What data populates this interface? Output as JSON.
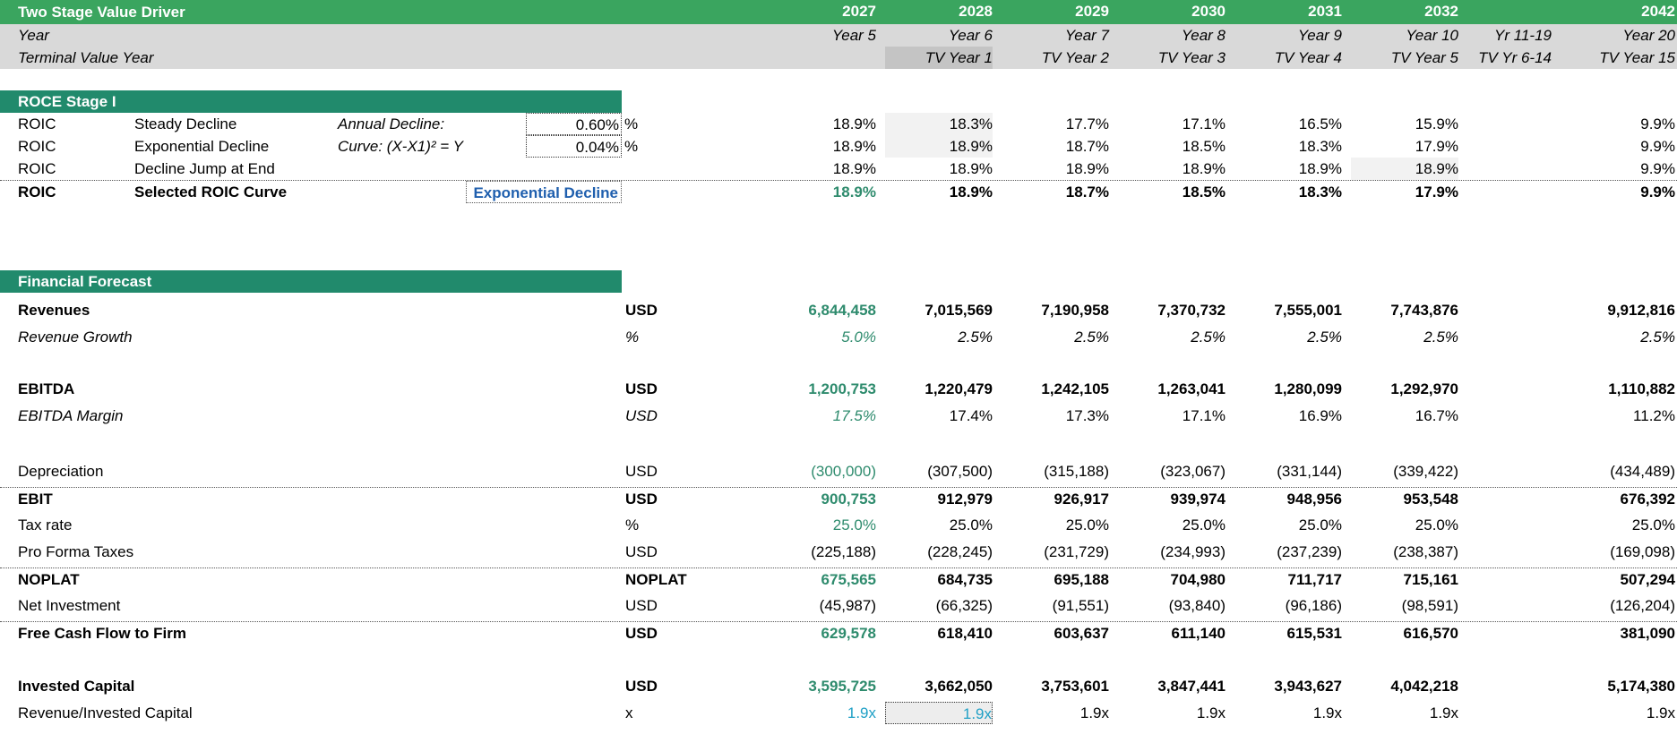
{
  "header": {
    "title": "Two Stage Value Driver",
    "years": [
      "2027",
      "2028",
      "2029",
      "2030",
      "2031",
      "2032",
      "",
      "2042"
    ]
  },
  "year_row": {
    "label": "Year",
    "values": [
      "Year 5",
      "Year 6",
      "Year 7",
      "Year 8",
      "Year 9",
      "Year 10",
      "Yr 11-19",
      "Year 20"
    ]
  },
  "tv_row": {
    "label": "Terminal Value Year",
    "values": [
      "",
      "TV Year 1",
      "TV Year 2",
      "TV Year 3",
      "TV Year 4",
      "TV Year 5",
      "TV Yr 6-14",
      "TV Year 15"
    ]
  },
  "roce": {
    "title": "ROCE Stage I",
    "rows": [
      {
        "a": "ROIC",
        "b": "Steady Decline",
        "c": "Annual Decline:",
        "input": "0.60%",
        "unit": "%",
        "values": [
          "18.9%",
          "18.3%",
          "17.7%",
          "17.1%",
          "16.5%",
          "15.9%",
          "",
          "9.9%"
        ]
      },
      {
        "a": "ROIC",
        "b": "Exponential Decline",
        "c": "Curve: (X-X1)² = Y",
        "input": "0.04%",
        "unit": "%",
        "values": [
          "18.9%",
          "18.9%",
          "18.7%",
          "18.5%",
          "18.3%",
          "17.9%",
          "",
          "9.9%"
        ]
      },
      {
        "a": "ROIC",
        "b": "Decline Jump at End",
        "c": "",
        "input": "",
        "unit": "",
        "values": [
          "18.9%",
          "18.9%",
          "18.9%",
          "18.9%",
          "18.9%",
          "18.9%",
          "",
          "9.9%"
        ]
      }
    ],
    "selected": {
      "a": "ROIC",
      "b": "Selected ROIC Curve",
      "dropdown": "Exponential Decline",
      "values": [
        "18.9%",
        "18.9%",
        "18.7%",
        "18.5%",
        "18.3%",
        "17.9%",
        "",
        "9.9%"
      ]
    }
  },
  "forecast": {
    "title": "Financial Forecast",
    "rows": [
      {
        "label": "Revenues",
        "unit": "USD",
        "values": [
          "6,844,458",
          "7,015,569",
          "7,190,958",
          "7,370,732",
          "7,555,001",
          "7,743,876",
          "",
          "9,912,816"
        ]
      },
      {
        "label": "Revenue Growth",
        "unit": "%",
        "values": [
          "5.0%",
          "2.5%",
          "2.5%",
          "2.5%",
          "2.5%",
          "2.5%",
          "",
          "2.5%"
        ]
      },
      {
        "label": "EBITDA",
        "unit": "USD",
        "values": [
          "1,200,753",
          "1,220,479",
          "1,242,105",
          "1,263,041",
          "1,280,099",
          "1,292,970",
          "",
          "1,110,882"
        ]
      },
      {
        "label": "EBITDA Margin",
        "unit": "USD",
        "values": [
          "17.5%",
          "17.4%",
          "17.3%",
          "17.1%",
          "16.9%",
          "16.7%",
          "",
          "11.2%"
        ]
      },
      {
        "label": "Depreciation",
        "unit": "USD",
        "values": [
          "(300,000)",
          "(307,500)",
          "(315,188)",
          "(323,067)",
          "(331,144)",
          "(339,422)",
          "",
          "(434,489)"
        ]
      },
      {
        "label": "EBIT",
        "unit": "USD",
        "values": [
          "900,753",
          "912,979",
          "926,917",
          "939,974",
          "948,956",
          "953,548",
          "",
          "676,392"
        ]
      },
      {
        "label": "Tax rate",
        "unit": "%",
        "values": [
          "25.0%",
          "25.0%",
          "25.0%",
          "25.0%",
          "25.0%",
          "25.0%",
          "",
          "25.0%"
        ]
      },
      {
        "label": "Pro Forma Taxes",
        "unit": "USD",
        "values": [
          "(225,188)",
          "(228,245)",
          "(231,729)",
          "(234,993)",
          "(237,239)",
          "(238,387)",
          "",
          "(169,098)"
        ]
      },
      {
        "label": "NOPLAT",
        "unit": "NOPLAT",
        "values": [
          "675,565",
          "684,735",
          "695,188",
          "704,980",
          "711,717",
          "715,161",
          "",
          "507,294"
        ]
      },
      {
        "label": "Net Investment",
        "unit": "USD",
        "values": [
          "(45,987)",
          "(66,325)",
          "(91,551)",
          "(93,840)",
          "(96,186)",
          "(98,591)",
          "",
          "(126,204)"
        ]
      },
      {
        "label": "Free Cash Flow to Firm",
        "unit": "USD",
        "values": [
          "629,578",
          "618,410",
          "603,637",
          "611,140",
          "615,531",
          "616,570",
          "",
          "381,090"
        ]
      },
      {
        "label": "Invested Capital",
        "unit": "USD",
        "values": [
          "3,595,725",
          "3,662,050",
          "3,753,601",
          "3,847,441",
          "3,943,627",
          "4,042,218",
          "",
          "5,174,380"
        ]
      },
      {
        "label": "Revenue/Invested Capital",
        "unit": "x",
        "values": [
          "1.9x",
          "1.9x",
          "1.9x",
          "1.9x",
          "1.9x",
          "1.9x",
          "",
          "1.9x"
        ]
      }
    ]
  }
}
